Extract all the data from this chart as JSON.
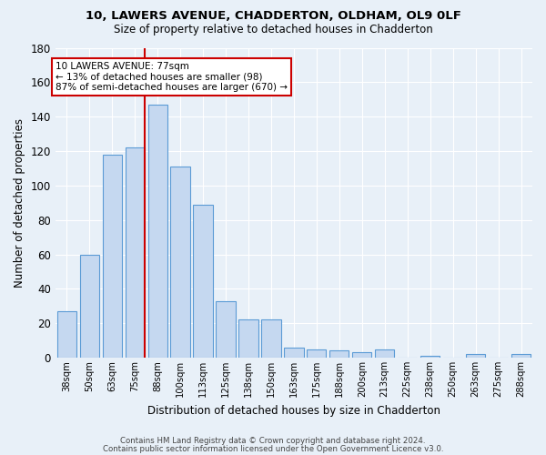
{
  "title1": "10, LAWERS AVENUE, CHADDERTON, OLDHAM, OL9 0LF",
  "title2": "Size of property relative to detached houses in Chadderton",
  "xlabel": "Distribution of detached houses by size in Chadderton",
  "ylabel": "Number of detached properties",
  "footnote1": "Contains HM Land Registry data © Crown copyright and database right 2024.",
  "footnote2": "Contains public sector information licensed under the Open Government Licence v3.0.",
  "annotation_line1": "10 LAWERS AVENUE: 77sqm",
  "annotation_line2": "← 13% of detached houses are smaller (98)",
  "annotation_line3": "87% of semi-detached houses are larger (670) →",
  "bar_labels": [
    "38sqm",
    "50sqm",
    "63sqm",
    "75sqm",
    "88sqm",
    "100sqm",
    "113sqm",
    "125sqm",
    "138sqm",
    "150sqm",
    "163sqm",
    "175sqm",
    "188sqm",
    "200sqm",
    "213sqm",
    "225sqm",
    "238sqm",
    "250sqm",
    "263sqm",
    "275sqm",
    "288sqm"
  ],
  "bar_values": [
    27,
    60,
    118,
    122,
    147,
    111,
    89,
    33,
    22,
    22,
    6,
    5,
    4,
    3,
    5,
    0,
    1,
    0,
    2,
    0,
    2
  ],
  "bar_color": "#c5d8f0",
  "bar_edge_color": "#5b9bd5",
  "vline_color": "#cc0000",
  "vline_bar_index": 3,
  "ylim": [
    0,
    180
  ],
  "yticks": [
    0,
    20,
    40,
    60,
    80,
    100,
    120,
    140,
    160,
    180
  ],
  "bg_color": "#e8f0f8",
  "grid_color": "#ffffff",
  "annotation_box_facecolor": "#ffffff",
  "annotation_box_edgecolor": "#cc0000"
}
